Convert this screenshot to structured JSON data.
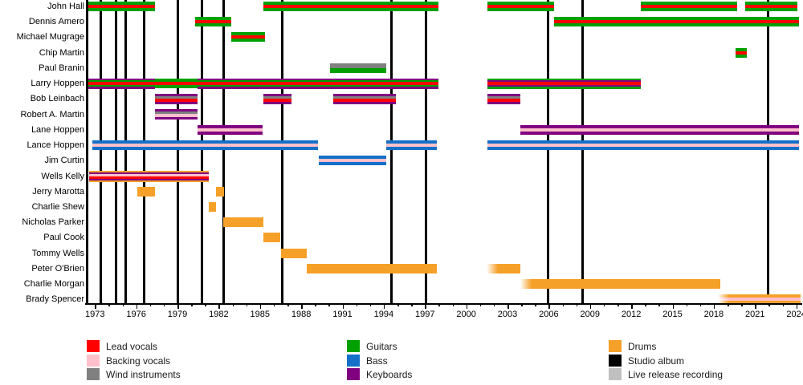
{
  "page_background": "#FFFFFF",
  "chart_data": {
    "type": "bar",
    "variant": "horizontal gantt band-members timeline",
    "title": "",
    "grid": "vertical event lines only",
    "x_axis": {
      "start": 1972.35,
      "end": 2024.35,
      "major_tick_labels": [
        "1973",
        "1976",
        "1979",
        "1982",
        "1985",
        "1988",
        "1991",
        "1994",
        "1997",
        "2000",
        "2003",
        "2006",
        "2009",
        "2012",
        "2015",
        "2018",
        "2021",
        "2024"
      ],
      "major_tick_interval_years": 3,
      "minor_tick_interval_years": 1
    },
    "colors": {
      "lead_vocals": "#FF0000",
      "backing_vocals": "#FFC0CB",
      "wind_instruments": "#808080",
      "guitars": "#00A000",
      "bass": "#1470C8",
      "keyboards": "#800080",
      "drums": "#F5A028",
      "studio_album": "#000000",
      "live_release_recording": "#C0C0C0"
    },
    "album_lines": {
      "studio_album_years": [
        1972.4,
        1973.43,
        1974.52,
        1975.24,
        1976.6,
        1979.04,
        1980.79,
        1982.34,
        1986.59,
        1994.57,
        1997.08,
        2005.96,
        2008.43,
        2021.92
      ],
      "live_release_years": []
    },
    "members": [
      {
        "name": "John Hall",
        "stints": [
          {
            "start": 1972.5,
            "end": 1977.38,
            "stripes": [
              "guitars",
              "lead_vocals",
              "guitars"
            ]
          },
          {
            "start": 1985.25,
            "end": 1997.95,
            "stripes": [
              "guitars",
              "lead_vocals",
              "guitars"
            ]
          },
          {
            "start": 2001.55,
            "end": 2006.4,
            "stripes": [
              "guitars",
              "lead_vocals",
              "guitars"
            ]
          },
          {
            "start": 2012.7,
            "end": 2019.7,
            "stripes": [
              "guitars",
              "lead_vocals",
              "guitars"
            ]
          },
          {
            "start": 2020.3,
            "end": 2024.1,
            "stripes": [
              "guitars",
              "lead_vocals",
              "guitars"
            ]
          }
        ]
      },
      {
        "name": "Dennis Amero",
        "stints": [
          {
            "start": 1980.3,
            "end": 1982.9,
            "stripes": [
              "guitars",
              "lead_vocals",
              "guitars"
            ]
          },
          {
            "start": 2006.4,
            "end": 2024.2,
            "stripes": [
              "guitars",
              "lead_vocals",
              "guitars"
            ]
          }
        ]
      },
      {
        "name": "Michael Mugrage",
        "stints": [
          {
            "start": 1982.9,
            "end": 1985.35,
            "stripes": [
              "guitars",
              "lead_vocals",
              "guitars"
            ]
          }
        ]
      },
      {
        "name": "Chip Martin",
        "stints": [
          {
            "start": 2019.6,
            "end": 2020.4,
            "stripes": [
              "guitars",
              "lead_vocals",
              "guitars"
            ]
          }
        ]
      },
      {
        "name": "Paul Branin",
        "stints": [
          {
            "start": 1990.1,
            "end": 1994.2,
            "stripes": [
              "wind_instruments",
              "guitars"
            ]
          }
        ]
      },
      {
        "name": "Larry Hoppen",
        "stints": [
          {
            "start": 1972.5,
            "end": 1977.38,
            "stripes": [
              "keyboards",
              "guitars",
              "lead_vocals",
              "guitars",
              "keyboards"
            ]
          },
          {
            "start": 1977.38,
            "end": 1980.47,
            "stripes": [
              "guitars",
              "lead_vocals",
              "guitars"
            ]
          },
          {
            "start": 1980.47,
            "end": 1997.95,
            "stripes": [
              "keyboards",
              "guitars",
              "lead_vocals",
              "guitars",
              "keyboards"
            ]
          },
          {
            "start": 2001.55,
            "end": 2012.7,
            "stripes": [
              "guitars",
              "keyboards",
              "lead_vocals",
              "keyboards",
              "guitars"
            ]
          }
        ]
      },
      {
        "name": "Bob Leinbach",
        "stints": [
          {
            "start": 1977.35,
            "end": 1980.46,
            "stripes": [
              "keyboards",
              "wind_instruments",
              "lead_vocals",
              "keyboards"
            ]
          },
          {
            "start": 1985.25,
            "end": 1987.3,
            "stripes": [
              "keyboards",
              "wind_instruments",
              "lead_vocals",
              "keyboards"
            ]
          },
          {
            "start": 1990.35,
            "end": 1994.9,
            "stripes": [
              "keyboards",
              "wind_instruments",
              "lead_vocals",
              "keyboards"
            ]
          },
          {
            "start": 2001.55,
            "end": 2003.95,
            "stripes": [
              "keyboards",
              "wind_instruments",
              "lead_vocals",
              "keyboards"
            ]
          }
        ]
      },
      {
        "name": "Robert A. Martin",
        "stints": [
          {
            "start": 1977.35,
            "end": 1980.46,
            "stripes": [
              "keyboards",
              "wind_instruments",
              "backing_vocals",
              "keyboards"
            ]
          }
        ]
      },
      {
        "name": "Lane Hoppen",
        "stints": [
          {
            "start": 1980.45,
            "end": 1985.2,
            "stripes": [
              "keyboards",
              "backing_vocals",
              "keyboards"
            ]
          },
          {
            "start": 2003.95,
            "end": 2024.2,
            "stripes": [
              "keyboards",
              "backing_vocals",
              "keyboards"
            ]
          }
        ]
      },
      {
        "name": "Lance Hoppen",
        "stints": [
          {
            "start": 1972.8,
            "end": 1989.2,
            "stripes": [
              "bass",
              "backing_vocals",
              "bass"
            ]
          },
          {
            "start": 1994.18,
            "end": 1997.88,
            "stripes": [
              "bass",
              "backing_vocals",
              "bass"
            ]
          },
          {
            "start": 2001.55,
            "end": 2024.2,
            "stripes": [
              "bass",
              "backing_vocals",
              "bass"
            ]
          }
        ]
      },
      {
        "name": "Jim Curtin",
        "stints": [
          {
            "start": 1989.25,
            "end": 1994.2,
            "stripes": [
              "bass",
              "backing_vocals",
              "bass"
            ]
          }
        ]
      },
      {
        "name": "Wells Kelly",
        "stints": [
          {
            "start": 1972.6,
            "end": 1981.27,
            "stripes": [
              "drums",
              "keyboards",
              "backing_vocals",
              "lead_vocals",
              "keyboards",
              "drums"
            ]
          }
        ]
      },
      {
        "name": "Jerry Marotta",
        "stints": [
          {
            "start": 1976.05,
            "end": 1977.38,
            "stripes": [
              "drums"
            ]
          },
          {
            "start": 1981.8,
            "end": 1982.4,
            "stripes": [
              "drums"
            ]
          }
        ]
      },
      {
        "name": "Charlie Shew",
        "stints": [
          {
            "start": 1981.27,
            "end": 1981.8,
            "stripes": [
              "drums"
            ]
          }
        ]
      },
      {
        "name": "Nicholas Parker",
        "stints": [
          {
            "start": 1982.35,
            "end": 1985.25,
            "stripes": [
              "drums"
            ]
          }
        ]
      },
      {
        "name": "Paul Cook",
        "stints": [
          {
            "start": 1985.25,
            "end": 1986.45,
            "stripes": [
              "drums"
            ]
          }
        ]
      },
      {
        "name": "Tommy Wells",
        "stints": [
          {
            "start": 1986.55,
            "end": 1988.4,
            "stripes": [
              "drums"
            ]
          }
        ]
      },
      {
        "name": "Peter O'Brien",
        "stints": [
          {
            "start": 1988.4,
            "end": 1997.88,
            "stripes": [
              "drums"
            ]
          },
          {
            "start": 2001.5,
            "end": 2003.95,
            "stripes": [
              "drums"
            ],
            "fade_left": true
          }
        ]
      },
      {
        "name": "Charlie Morgan",
        "stints": [
          {
            "start": 2003.95,
            "end": 2018.45,
            "stripes": [
              "drums"
            ],
            "fade_left": true
          }
        ]
      },
      {
        "name": "Brady Spencer",
        "stints": [
          {
            "start": 2018.3,
            "end": 2024.35,
            "stripes": [
              "drums",
              "backing_vocals",
              "drums"
            ],
            "fade_left": true
          }
        ]
      }
    ],
    "legend": {
      "columns": [
        [
          {
            "label": "Lead vocals",
            "role": "lead_vocals"
          },
          {
            "label": "Backing vocals",
            "role": "backing_vocals"
          },
          {
            "label": "Wind instruments",
            "role": "wind_instruments"
          }
        ],
        [
          {
            "label": "Guitars",
            "role": "guitars"
          },
          {
            "label": "Bass",
            "role": "bass"
          },
          {
            "label": "Keyboards",
            "role": "keyboards"
          }
        ],
        [
          {
            "label": "Drums",
            "role": "drums"
          },
          {
            "label": "Studio album",
            "role": "studio_album"
          },
          {
            "label": "Live release recording",
            "role": "live_release_recording"
          }
        ]
      ]
    }
  }
}
